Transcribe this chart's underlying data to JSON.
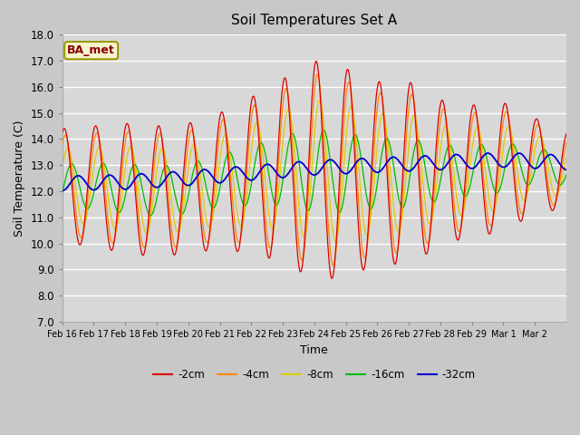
{
  "title": "Soil Temperatures Set A",
  "xlabel": "Time",
  "ylabel": "Soil Temperature (C)",
  "ylim": [
    7.0,
    18.0
  ],
  "yticks": [
    7.0,
    8.0,
    9.0,
    10.0,
    11.0,
    12.0,
    13.0,
    14.0,
    15.0,
    16.0,
    17.0,
    18.0
  ],
  "xtick_labels": [
    "Feb 16",
    "Feb 17",
    "Feb 18",
    "Feb 19",
    "Feb 20",
    "Feb 21",
    "Feb 22",
    "Feb 23",
    "Feb 24",
    "Feb 25",
    "Feb 26",
    "Feb 27",
    "Feb 28",
    "Feb 29",
    "Mar 1",
    "Mar 2"
  ],
  "legend_labels": [
    "-2cm",
    "-4cm",
    "-8cm",
    "-16cm",
    "-32cm"
  ],
  "bg_color": "#c8c8c8",
  "plot_bg_color": "#d8d8d8",
  "annotation_text": "BA_met",
  "annotation_color": "#8b0000",
  "annotation_bg": "#f5f5d0",
  "annotation_border": "#999900"
}
